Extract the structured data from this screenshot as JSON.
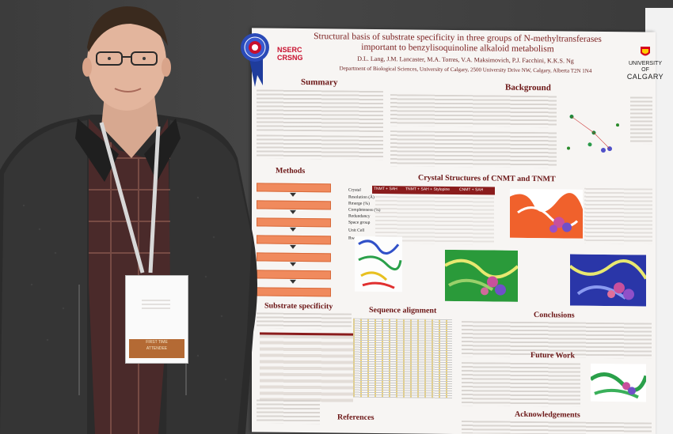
{
  "poster": {
    "title_line1": "Structural basis of substrate specificity in three groups of N-methyltransferases",
    "title_line2": "important to benzylisoquinoline alkaloid metabolism",
    "authors": "D.L. Lang, J.M. Lancaster, M.A. Torres, V.A. Maksimovich, P.J. Facchini, K.K.S. Ng",
    "affiliation": "Department of Biological Sciences, University of Calgary, 2500 University Drive NW, Calgary, Alberta T2N 1N4",
    "sections": {
      "summary": "Summary",
      "background": "Background",
      "methods": "Methods",
      "crystal": "Crystal Structures of CNMT and TNMT",
      "substrate": "Substrate specificity",
      "sequence": "Sequence alignment",
      "conclusions": "Conclusions",
      "future": "Future Work",
      "references": "References",
      "acknowledgements": "Acknowledgements"
    },
    "table_headers": [
      "TNMT + SAH",
      "TNMT + SAH + Stylopine",
      "CNMT + SAH"
    ],
    "table_rows": [
      "Crystal",
      "Resolution (Å)",
      "Rmerge (%)",
      "Completeness (%)",
      "Redundancy",
      "Space group",
      "Unit Cell",
      "Rwork/Rfree"
    ]
  },
  "logos": {
    "nserc_line1": "NSERC",
    "nserc_line2": "CRSNG",
    "ucal_line1": "UNIVERSITY OF",
    "ucal_line2": "CALGARY"
  },
  "badge": {
    "label_line1": "FIRST TIME",
    "label_line2": "ATTENDEE"
  },
  "colors": {
    "poster_heading": "#6b1515",
    "table_header": "#8a1c1c",
    "flow_box": "#f08a5d",
    "ribbon": "#1f3c9c"
  }
}
